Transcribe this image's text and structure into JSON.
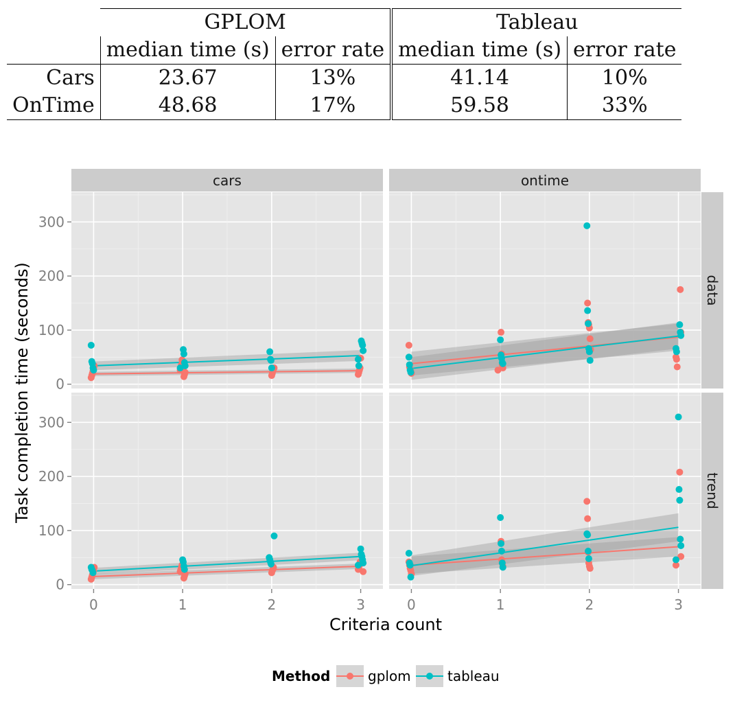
{
  "table": {
    "group_headers": [
      "GPLOM",
      "Tableau"
    ],
    "column_headers": [
      "median time (s)",
      "error rate",
      "median time (s)",
      "error rate"
    ],
    "rows": [
      {
        "label": "Cars",
        "values": [
          "23.67",
          "13%",
          "41.14",
          "10%"
        ]
      },
      {
        "label": "OnTime",
        "values": [
          "48.68",
          "17%",
          "59.58",
          "33%"
        ]
      }
    ]
  },
  "colors": {
    "gplom": "#F8766D",
    "tableau": "#00BFC4",
    "panel_bg": "#E5E5E5",
    "strip_bg": "#CCCCCC",
    "grid": "#FFFFFF",
    "ribbon": "#999999"
  },
  "chart_data": {
    "type": "scatter",
    "facets": {
      "columns": [
        "cars",
        "ontime"
      ],
      "rows": [
        "data",
        "trend"
      ]
    },
    "xlabel": "Criteria count",
    "ylabel": "Task completion time (seconds)",
    "x_ticks": [
      "0",
      "1",
      "2",
      "3"
    ],
    "y_ticks": [
      "0",
      "100",
      "200",
      "300"
    ],
    "xlim": [
      -0.25,
      3.25
    ],
    "ylim": [
      -8,
      355
    ],
    "grid": true,
    "smooth": "linear fit with confidence band",
    "legend": {
      "title": "Method",
      "position": "bottom",
      "entries": [
        "gplom",
        "tableau"
      ]
    },
    "panels": [
      {
        "column": "cars",
        "row": "data",
        "series": [
          {
            "name": "gplom",
            "points": [
              [
                0,
                12
              ],
              [
                0,
                16
              ],
              [
                0,
                20
              ],
              [
                0,
                24
              ],
              [
                0,
                28
              ],
              [
                0,
                34
              ],
              [
                1,
                14
              ],
              [
                1,
                18
              ],
              [
                1,
                22
              ],
              [
                1,
                26
              ],
              [
                1,
                30
              ],
              [
                1,
                36
              ],
              [
                1,
                45
              ],
              [
                2,
                16
              ],
              [
                2,
                20
              ],
              [
                2,
                24
              ],
              [
                2,
                28
              ],
              [
                2,
                30
              ],
              [
                3,
                18
              ],
              [
                3,
                22
              ],
              [
                3,
                26
              ],
              [
                3,
                30
              ],
              [
                3,
                48
              ]
            ],
            "fit": {
              "y0": 19,
              "y3": 25,
              "lo0": 15,
              "hi0": 23,
              "lo3": 21,
              "hi3": 29
            }
          },
          {
            "name": "tableau",
            "points": [
              [
                0,
                72
              ],
              [
                0,
                42
              ],
              [
                0,
                38
              ],
              [
                0,
                30
              ],
              [
                0,
                26
              ],
              [
                1,
                64
              ],
              [
                1,
                56
              ],
              [
                1,
                40
              ],
              [
                1,
                34
              ],
              [
                1,
                30
              ],
              [
                2,
                60
              ],
              [
                2,
                46
              ],
              [
                2,
                44
              ],
              [
                2,
                30
              ],
              [
                3,
                80
              ],
              [
                3,
                76
              ],
              [
                3,
                72
              ],
              [
                3,
                62
              ],
              [
                3,
                46
              ],
              [
                3,
                34
              ]
            ],
            "fit": {
              "y0": 34,
              "y3": 53,
              "lo0": 26,
              "hi0": 42,
              "lo3": 43,
              "hi3": 63
            }
          }
        ]
      },
      {
        "column": "ontime",
        "row": "data",
        "series": [
          {
            "name": "gplom",
            "points": [
              [
                0,
                72
              ],
              [
                0,
                32
              ],
              [
                0,
                28
              ],
              [
                0,
                24
              ],
              [
                0,
                20
              ],
              [
                1,
                96
              ],
              [
                1,
                56
              ],
              [
                1,
                36
              ],
              [
                1,
                30
              ],
              [
                1,
                26
              ],
              [
                2,
                150
              ],
              [
                2,
                114
              ],
              [
                2,
                110
              ],
              [
                2,
                104
              ],
              [
                2,
                84
              ],
              [
                2,
                64
              ],
              [
                3,
                175
              ],
              [
                3,
                96
              ],
              [
                3,
                50
              ],
              [
                3,
                46
              ],
              [
                3,
                32
              ]
            ],
            "fit": {
              "y0": 38,
              "y3": 87,
              "lo0": 16,
              "hi0": 60,
              "lo3": 62,
              "hi3": 112
            }
          },
          {
            "name": "tableau",
            "points": [
              [
                0,
                50
              ],
              [
                0,
                36
              ],
              [
                0,
                26
              ],
              [
                0,
                22
              ],
              [
                1,
                82
              ],
              [
                1,
                54
              ],
              [
                1,
                48
              ],
              [
                1,
                40
              ],
              [
                1,
                38
              ],
              [
                2,
                293
              ],
              [
                2,
                136
              ],
              [
                2,
                112
              ],
              [
                2,
                66
              ],
              [
                2,
                60
              ],
              [
                2,
                44
              ],
              [
                3,
                110
              ],
              [
                3,
                96
              ],
              [
                3,
                90
              ],
              [
                3,
                66
              ],
              [
                3,
                60
              ]
            ],
            "fit": {
              "y0": 29,
              "y3": 89,
              "lo0": 8,
              "hi0": 50,
              "lo3": 66,
              "hi3": 114
            }
          }
        ]
      },
      {
        "column": "cars",
        "row": "trend",
        "series": [
          {
            "name": "gplom",
            "points": [
              [
                0,
                10
              ],
              [
                0,
                14
              ],
              [
                0,
                18
              ],
              [
                0,
                22
              ],
              [
                0,
                26
              ],
              [
                0,
                32
              ],
              [
                1,
                12
              ],
              [
                1,
                16
              ],
              [
                1,
                20
              ],
              [
                1,
                24
              ],
              [
                1,
                28
              ],
              [
                1,
                32
              ],
              [
                1,
                36
              ],
              [
                2,
                22
              ],
              [
                2,
                26
              ],
              [
                2,
                28
              ],
              [
                2,
                32
              ],
              [
                3,
                24
              ],
              [
                3,
                28
              ],
              [
                3,
                32
              ],
              [
                3,
                36
              ],
              [
                3,
                42
              ]
            ],
            "fit": {
              "y0": 15,
              "y3": 34,
              "lo0": 10,
              "hi0": 20,
              "lo3": 29,
              "hi3": 39
            }
          },
          {
            "name": "tableau",
            "points": [
              [
                0,
                32
              ],
              [
                0,
                28
              ],
              [
                0,
                26
              ],
              [
                0,
                22
              ],
              [
                1,
                46
              ],
              [
                1,
                42
              ],
              [
                1,
                34
              ],
              [
                1,
                28
              ],
              [
                2,
                90
              ],
              [
                2,
                50
              ],
              [
                2,
                46
              ],
              [
                2,
                42
              ],
              [
                2,
                38
              ],
              [
                3,
                66
              ],
              [
                3,
                56
              ],
              [
                3,
                52
              ],
              [
                3,
                46
              ],
              [
                3,
                40
              ],
              [
                3,
                36
              ]
            ],
            "fit": {
              "y0": 25,
              "y3": 52,
              "lo0": 19,
              "hi0": 31,
              "lo3": 45,
              "hi3": 59
            }
          }
        ]
      },
      {
        "column": "ontime",
        "row": "trend",
        "series": [
          {
            "name": "gplom",
            "points": [
              [
                0,
                42
              ],
              [
                0,
                36
              ],
              [
                0,
                30
              ],
              [
                0,
                26
              ],
              [
                0,
                20
              ],
              [
                1,
                80
              ],
              [
                1,
                46
              ],
              [
                1,
                40
              ],
              [
                1,
                34
              ],
              [
                2,
                154
              ],
              [
                2,
                122
              ],
              [
                2,
                60
              ],
              [
                2,
                40
              ],
              [
                2,
                34
              ],
              [
                2,
                30
              ],
              [
                3,
                208
              ],
              [
                3,
                84
              ],
              [
                3,
                52
              ],
              [
                3,
                36
              ]
            ],
            "fit": {
              "y0": 36,
              "y3": 70,
              "lo0": 20,
              "hi0": 52,
              "lo3": 52,
              "hi3": 88
            }
          },
          {
            "name": "tableau",
            "points": [
              [
                0,
                58
              ],
              [
                0,
                40
              ],
              [
                0,
                36
              ],
              [
                0,
                14
              ],
              [
                1,
                124
              ],
              [
                1,
                76
              ],
              [
                1,
                62
              ],
              [
                1,
                40
              ],
              [
                1,
                32
              ],
              [
                2,
                94
              ],
              [
                2,
                92
              ],
              [
                2,
                62
              ],
              [
                2,
                48
              ],
              [
                3,
                310
              ],
              [
                3,
                176
              ],
              [
                3,
                156
              ],
              [
                3,
                84
              ],
              [
                3,
                72
              ],
              [
                3,
                46
              ]
            ],
            "fit": {
              "y0": 35,
              "y3": 106,
              "lo0": 16,
              "hi0": 54,
              "lo3": 80,
              "hi3": 132
            }
          }
        ]
      }
    ]
  }
}
